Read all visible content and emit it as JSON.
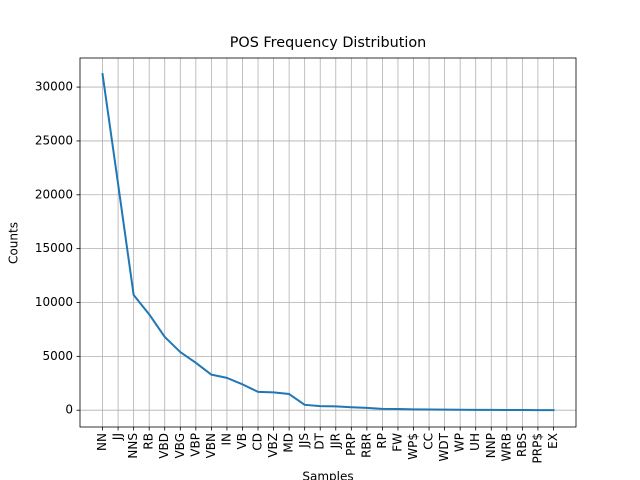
{
  "chart_data": {
    "type": "line",
    "title": "POS Frequency Distribution",
    "x_label": "Samples",
    "y_label": "Counts",
    "categories": [
      "NN",
      "JJ",
      "NNS",
      "RB",
      "VBD",
      "VBG",
      "VBP",
      "VBN",
      "IN",
      "VB",
      "CD",
      "VBZ",
      "MD",
      "JJS",
      "DT",
      "JJR",
      "PRP",
      "RBR",
      "RP",
      "FW",
      "WP$",
      "CC",
      "WDT",
      "WP",
      "UH",
      "NNP",
      "WRB",
      "RBS",
      "PRP$",
      "EX"
    ],
    "series": [
      {
        "name": "Counts",
        "color": "#1f77b4",
        "values": [
          31200,
          21000,
          10700,
          8900,
          6800,
          5400,
          4400,
          3300,
          3000,
          2400,
          1700,
          1650,
          1500,
          500,
          380,
          350,
          270,
          220,
          120,
          110,
          80,
          60,
          50,
          40,
          30,
          25,
          20,
          15,
          10,
          5
        ]
      }
    ],
    "ylim": [
      -1560,
      32700
    ],
    "yticks": [
      0,
      5000,
      10000,
      15000,
      20000,
      25000,
      30000
    ],
    "grid": true
  }
}
